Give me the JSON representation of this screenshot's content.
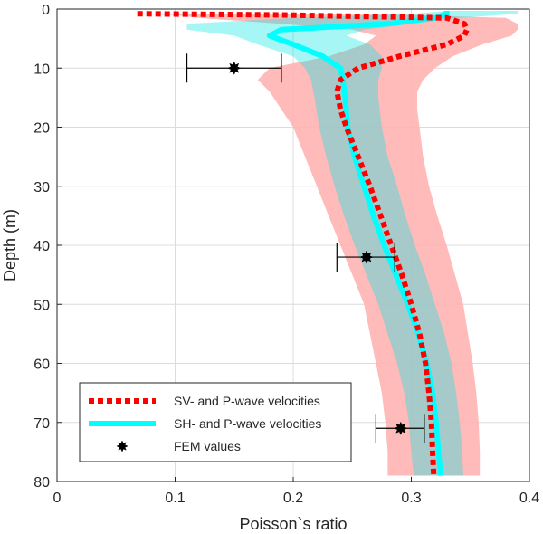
{
  "chart_data": {
    "type": "line",
    "title": "",
    "xlabel": "Poisson`s ratio",
    "ylabel": "Depth (m)",
    "xlim": [
      0,
      0.4
    ],
    "ylim": [
      0,
      80
    ],
    "y_reversed": true,
    "x_ticks": [
      0,
      0.1,
      0.2,
      0.3,
      0.4
    ],
    "x_tick_labels": [
      "0",
      "0.1",
      "0.2",
      "0.3",
      "0.4"
    ],
    "y_ticks": [
      0,
      10,
      20,
      30,
      40,
      50,
      60,
      70,
      80
    ],
    "y_tick_labels": [
      "0",
      "10",
      "20",
      "30",
      "40",
      "50",
      "60",
      "70",
      "80"
    ],
    "grid": true,
    "legend_position": "bottom-left",
    "series": [
      {
        "name": "SV- and P-wave velocities",
        "kind": "line",
        "style": "dotted",
        "color": "#ff0000",
        "depth": [
          0.8,
          1.0,
          1.5,
          2.5,
          3.5,
          4.5,
          6,
          8,
          10,
          12,
          14,
          17,
          20,
          25,
          30,
          35,
          40,
          45,
          50,
          55,
          60,
          65,
          70,
          75,
          79
        ],
        "values": [
          0.068,
          0.19,
          0.33,
          0.345,
          0.347,
          0.345,
          0.33,
          0.29,
          0.255,
          0.24,
          0.237,
          0.24,
          0.245,
          0.255,
          0.265,
          0.274,
          0.283,
          0.292,
          0.3,
          0.307,
          0.312,
          0.315,
          0.317,
          0.318,
          0.319
        ],
        "band_lower": [
          0.01,
          0.1,
          0.12,
          0.19,
          0.25,
          0.27,
          0.26,
          0.23,
          0.18,
          0.17,
          0.18,
          0.19,
          0.2,
          0.21,
          0.22,
          0.23,
          0.24,
          0.25,
          0.26,
          0.265,
          0.27,
          0.275,
          0.278,
          0.28,
          0.28
        ],
        "band_upper": [
          0.09,
          0.3,
          0.38,
          0.39,
          0.39,
          0.385,
          0.36,
          0.335,
          0.32,
          0.31,
          0.305,
          0.305,
          0.307,
          0.31,
          0.315,
          0.322,
          0.33,
          0.337,
          0.344,
          0.348,
          0.352,
          0.355,
          0.357,
          0.358,
          0.358
        ],
        "band_color": "#ffb3b3"
      },
      {
        "name": "SH- and P-wave velocities",
        "kind": "line",
        "style": "solid",
        "color": "#00ffff",
        "depth": [
          0.3,
          0.8,
          1.5,
          2.5,
          3.5,
          4.5,
          6,
          8,
          10,
          12,
          15,
          20,
          25,
          30,
          35,
          40,
          45,
          50,
          55,
          60,
          65,
          70,
          75,
          79
        ],
        "values": [
          0.33,
          0.33,
          0.32,
          0.28,
          0.19,
          0.18,
          0.2,
          0.225,
          0.24,
          0.242,
          0.244,
          0.246,
          0.252,
          0.26,
          0.268,
          0.277,
          0.287,
          0.297,
          0.306,
          0.313,
          0.318,
          0.321,
          0.323,
          0.325
        ],
        "band_lower": [
          0.33,
          0.3,
          0.2,
          0.11,
          0.11,
          0.15,
          0.17,
          0.2,
          0.21,
          0.215,
          0.218,
          0.222,
          0.228,
          0.235,
          0.243,
          0.252,
          0.262,
          0.272,
          0.28,
          0.288,
          0.294,
          0.298,
          0.3,
          0.302
        ],
        "band_upper": [
          0.39,
          0.39,
          0.34,
          0.3,
          0.26,
          0.245,
          0.265,
          0.275,
          0.275,
          0.272,
          0.272,
          0.275,
          0.28,
          0.288,
          0.295,
          0.303,
          0.312,
          0.32,
          0.328,
          0.334,
          0.338,
          0.341,
          0.343,
          0.344
        ],
        "band_color": "#00e5e5"
      },
      {
        "name": "FEM values",
        "kind": "errorbar",
        "color": "#000000",
        "points": [
          {
            "x": 0.15,
            "y": 10,
            "xmin": 0.11,
            "xmax": 0.19
          },
          {
            "x": 0.262,
            "y": 42,
            "xmin": 0.237,
            "xmax": 0.286
          },
          {
            "x": 0.291,
            "y": 71,
            "xmin": 0.27,
            "xmax": 0.311
          }
        ]
      }
    ]
  }
}
